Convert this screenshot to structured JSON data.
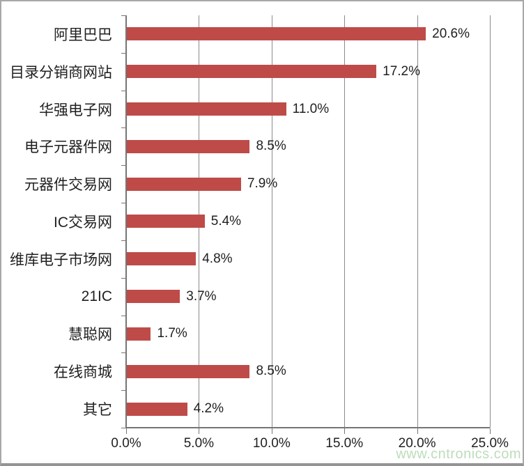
{
  "chart_data": {
    "type": "bar",
    "orientation": "horizontal",
    "title": "",
    "categories": [
      "阿里巴巴",
      "目录分销商网站",
      "华强电子网",
      "电子元器件网",
      "元器件交易网",
      "IC交易网",
      "维库电子市场网",
      "21IC",
      "慧聪网",
      "在线商城",
      "其它"
    ],
    "values": [
      20.6,
      17.2,
      11.0,
      8.5,
      7.9,
      5.4,
      4.8,
      3.7,
      1.7,
      8.5,
      4.2
    ],
    "value_labels": [
      "20.6%",
      "17.2%",
      "11.0%",
      "8.5%",
      "7.9%",
      "5.4%",
      "4.8%",
      "3.7%",
      "1.7%",
      "8.5%",
      "4.2%"
    ],
    "xlabel": "",
    "ylabel": "",
    "xlim": [
      0,
      25
    ],
    "x_tick_labels": [
      "0.0%",
      "5.0%",
      "10.0%",
      "15.0%",
      "20.0%",
      "25.0%"
    ],
    "grid": true,
    "legend": false
  },
  "colors": {
    "bar": "#be4b48",
    "gridline": "#8a8a8a",
    "axis": "#757575",
    "text": "#1f1f1f",
    "frame_border": "#a8a8a8",
    "watermark": "#b9dcb7"
  },
  "watermark": {
    "text": "www.cntronics.com"
  }
}
